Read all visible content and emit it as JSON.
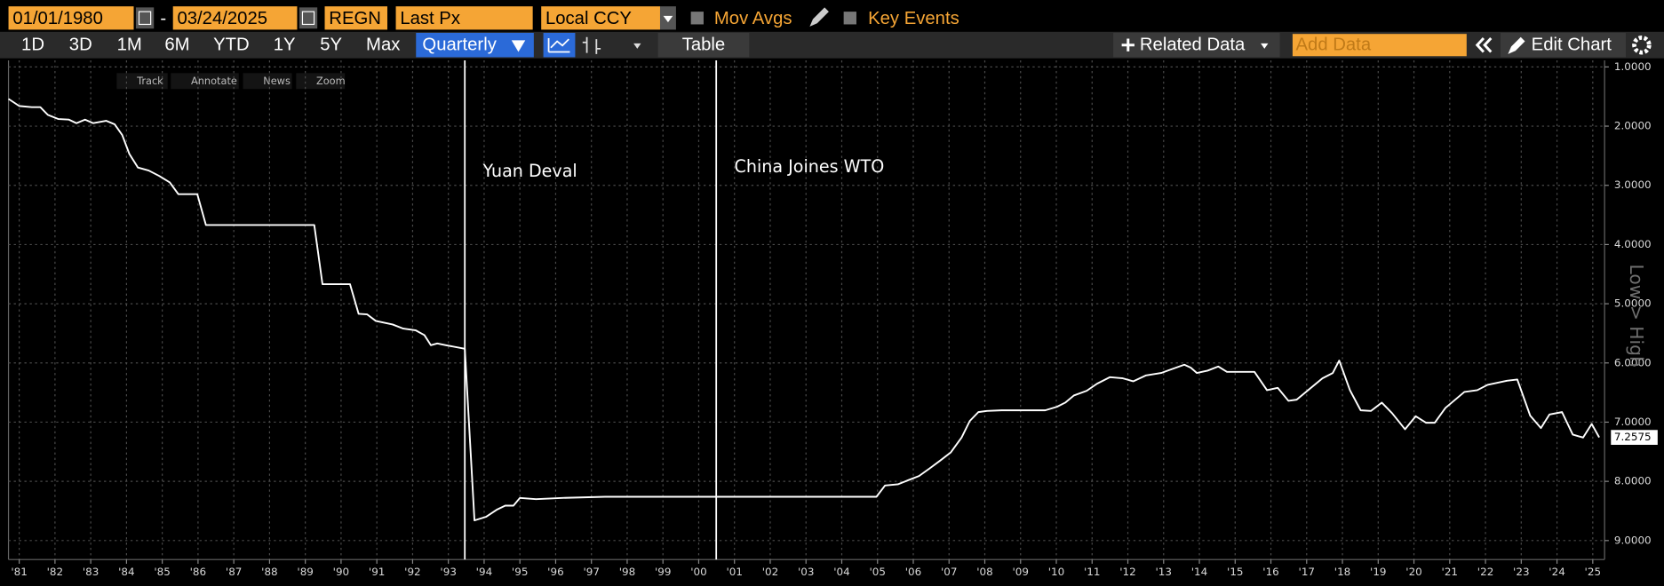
{
  "toolbar": {
    "start_date": "01/01/1980",
    "separator": "-",
    "end_date": "03/24/2025",
    "ticker": "REGN",
    "field": "Last Px",
    "currency": "Local CCY",
    "mov_avgs": "Mov Avgs",
    "key_events": "Key Events"
  },
  "range_buttons": [
    "1D",
    "3D",
    "1M",
    "6M",
    "YTD",
    "1Y",
    "5Y",
    "Max"
  ],
  "frequency": "Quarterly",
  "table": "Table",
  "related_data": "Related Data",
  "add_data": "Add Data",
  "edit_chart": "Edit Chart",
  "chart_tools": [
    "Track",
    "Annotate",
    "News",
    "Zoom"
  ],
  "chart_data": {
    "type": "line",
    "color": "#ffffff",
    "grid": true,
    "y_inverted": true,
    "y_axis_side": "right",
    "y_axis_note": "Low > High",
    "xlim": [
      1980.7,
      2025.33
    ],
    "ylim": [
      0.89,
      9.32
    ],
    "xticks": [
      {
        "value": 1981,
        "label": "'81"
      },
      {
        "value": 1982,
        "label": "'82"
      },
      {
        "value": 1983,
        "label": "'83"
      },
      {
        "value": 1984,
        "label": "'84"
      },
      {
        "value": 1985,
        "label": "'85"
      },
      {
        "value": 1986,
        "label": "'86"
      },
      {
        "value": 1987,
        "label": "'87"
      },
      {
        "value": 1988,
        "label": "'88"
      },
      {
        "value": 1989,
        "label": "'89"
      },
      {
        "value": 1990,
        "label": "'90"
      },
      {
        "value": 1991,
        "label": "'91"
      },
      {
        "value": 1992,
        "label": "'92"
      },
      {
        "value": 1993,
        "label": "'93"
      },
      {
        "value": 1994,
        "label": "'94"
      },
      {
        "value": 1995,
        "label": "'95"
      },
      {
        "value": 1996,
        "label": "'96"
      },
      {
        "value": 1997,
        "label": "'97"
      },
      {
        "value": 1998,
        "label": "'98"
      },
      {
        "value": 1999,
        "label": "'99"
      },
      {
        "value": 2000,
        "label": "'00"
      },
      {
        "value": 2001,
        "label": "'01"
      },
      {
        "value": 2002,
        "label": "'02"
      },
      {
        "value": 2003,
        "label": "'03"
      },
      {
        "value": 2004,
        "label": "'04"
      },
      {
        "value": 2005,
        "label": "'05"
      },
      {
        "value": 2006,
        "label": "'06"
      },
      {
        "value": 2007,
        "label": "'07"
      },
      {
        "value": 2008,
        "label": "'08"
      },
      {
        "value": 2009,
        "label": "'09"
      },
      {
        "value": 2010,
        "label": "'10"
      },
      {
        "value": 2011,
        "label": "'11"
      },
      {
        "value": 2012,
        "label": "'12"
      },
      {
        "value": 2013,
        "label": "'13"
      },
      {
        "value": 2014,
        "label": "'14"
      },
      {
        "value": 2015,
        "label": "'15"
      },
      {
        "value": 2016,
        "label": "'16"
      },
      {
        "value": 2017,
        "label": "'17"
      },
      {
        "value": 2018,
        "label": "'18"
      },
      {
        "value": 2019,
        "label": "'19"
      },
      {
        "value": 2020,
        "label": "'20"
      },
      {
        "value": 2021,
        "label": "'21"
      },
      {
        "value": 2022,
        "label": "'22"
      },
      {
        "value": 2023,
        "label": "'23"
      },
      {
        "value": 2024,
        "label": "'24"
      },
      {
        "value": 2025,
        "label": "'25"
      }
    ],
    "yticks": [
      {
        "value": 1,
        "label": "1.0000"
      },
      {
        "value": 2,
        "label": "2.0000"
      },
      {
        "value": 3,
        "label": "3.0000"
      },
      {
        "value": 4,
        "label": "4.0000"
      },
      {
        "value": 5,
        "label": "5.0000"
      },
      {
        "value": 6,
        "label": "6.0000"
      },
      {
        "value": 7,
        "label": "7.0000"
      },
      {
        "value": 8,
        "label": "8.0000"
      },
      {
        "value": 9,
        "label": "9.0000"
      }
    ],
    "annotations": [
      {
        "x": 1993.46,
        "label": "Yuan Deval"
      },
      {
        "x": 2000.49,
        "label": "China Joines WTO"
      }
    ],
    "x": [
      1980.7,
      1981.0,
      1981.35,
      1981.59,
      1981.8,
      1982.09,
      1982.39,
      1982.6,
      1982.84,
      1983.07,
      1983.43,
      1983.67,
      1983.88,
      1984.08,
      1984.32,
      1984.62,
      1984.91,
      1985.21,
      1985.45,
      1985.98,
      1986.22,
      1989.25,
      1989.48,
      1990.25,
      1990.49,
      1990.73,
      1990.97,
      1991.44,
      1991.74,
      1992.09,
      1992.33,
      1992.51,
      1992.69,
      1992.93,
      1993.46,
      1993.73,
      1994.05,
      1994.35,
      1994.59,
      1994.82,
      1995.0,
      1995.45,
      1996.19,
      1997.38,
      2004.97,
      2005.21,
      2005.57,
      2005.86,
      2006.16,
      2006.46,
      2006.75,
      2007.05,
      2007.35,
      2007.58,
      2007.82,
      2008.06,
      2008.47,
      2009.69,
      2010.02,
      2010.25,
      2010.49,
      2010.85,
      2011.14,
      2011.5,
      2011.86,
      2012.15,
      2012.51,
      2012.93,
      2013.16,
      2013.58,
      2013.76,
      2013.93,
      2014.23,
      2014.53,
      2014.77,
      2015.54,
      2015.89,
      2016.19,
      2016.49,
      2016.72,
      2017.02,
      2017.44,
      2017.73,
      2017.91,
      2018.21,
      2018.51,
      2018.8,
      2019.1,
      2019.39,
      2019.75,
      2020.05,
      2020.34,
      2020.58,
      2020.88,
      2021.41,
      2021.77,
      2022.06,
      2022.6,
      2022.89,
      2023.25,
      2023.55,
      2023.79,
      2024.14,
      2024.44,
      2024.73,
      2024.97,
      2025.18
    ],
    "values": [
      1.54,
      1.66,
      1.68,
      1.68,
      1.81,
      1.88,
      1.89,
      1.95,
      1.89,
      1.95,
      1.91,
      1.97,
      2.15,
      2.47,
      2.7,
      2.75,
      2.84,
      2.95,
      3.15,
      3.15,
      3.67,
      3.67,
      4.67,
      4.67,
      5.17,
      5.18,
      5.29,
      5.35,
      5.42,
      5.45,
      5.53,
      5.7,
      5.67,
      5.7,
      5.76,
      8.66,
      8.6,
      8.48,
      8.41,
      8.41,
      8.28,
      8.3,
      8.28,
      8.26,
      8.26,
      8.07,
      8.05,
      7.98,
      7.91,
      7.78,
      7.65,
      7.51,
      7.26,
      6.98,
      6.83,
      6.81,
      6.8,
      6.8,
      6.74,
      6.67,
      6.55,
      6.47,
      6.35,
      6.24,
      6.26,
      6.31,
      6.21,
      6.17,
      6.12,
      6.03,
      6.08,
      6.17,
      6.13,
      6.06,
      6.15,
      6.15,
      6.46,
      6.42,
      6.64,
      6.62,
      6.47,
      6.26,
      6.17,
      5.96,
      6.46,
      6.8,
      6.81,
      6.67,
      6.85,
      7.12,
      6.9,
      7.01,
      7.01,
      6.76,
      6.49,
      6.46,
      6.37,
      6.3,
      6.28,
      6.89,
      7.1,
      6.87,
      6.83,
      7.21,
      7.26,
      7.03,
      7.2575
    ]
  }
}
